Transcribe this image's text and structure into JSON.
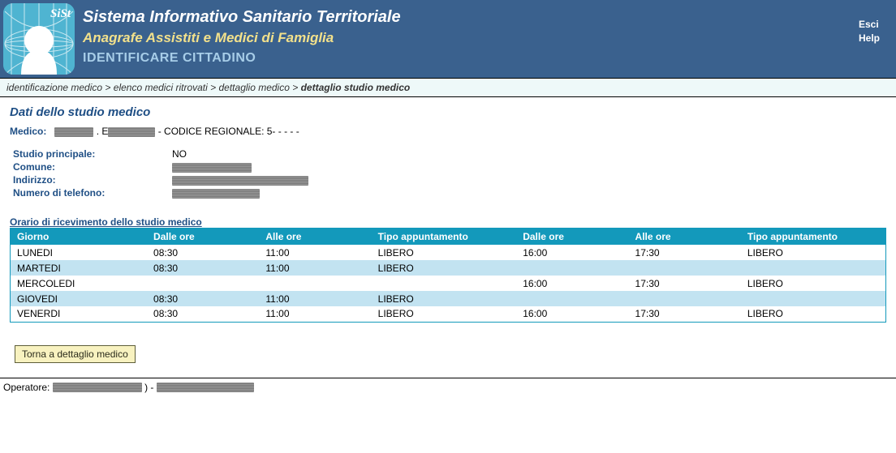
{
  "header": {
    "title1": "Sistema Informativo Sanitario Territoriale",
    "title2": "Anagrafe Assistiti e Medici di Famiglia",
    "subtitle": "IDENTIFICARE CITTADINO",
    "logo_label": "SiSt",
    "links": {
      "esci": "Esci",
      "help": "Help"
    },
    "colors": {
      "bg": "#3a618e",
      "title1": "#ffffff",
      "title2": "#f3e18b",
      "subtitle": "#a7cde8",
      "logo_bg": "#4fb4d1"
    }
  },
  "breadcrumb": {
    "items": [
      "identificazione medico",
      "elenco medici ritrovati",
      "dettaglio medico"
    ],
    "current": "dettaglio studio medico",
    "separator": " > "
  },
  "section_title": "Dati dello studio medico",
  "medico": {
    "label": "Medico:",
    "name_prefix_redacted_width": 48,
    "name_sep": ". E",
    "name_suffix_redacted_width": 58,
    "codice_label": " - CODICE REGIONALE: 5",
    "codice_suffix": "- - - - -"
  },
  "details": [
    {
      "label": "Studio principale:",
      "value": "NO",
      "redacted": false
    },
    {
      "label": "Comune:",
      "value": "",
      "redacted": true,
      "redacted_width": 98
    },
    {
      "label": "Indirizzo:",
      "value": "",
      "redacted": true,
      "redacted_width": 168
    },
    {
      "label": "Numero di telefono:",
      "value": "",
      "redacted": true,
      "redacted_width": 108
    }
  ],
  "schedule": {
    "title": "Orario di ricevimento dello studio medico",
    "header_bg": "#1399bb",
    "row_alt_bg": "#c2e3f1",
    "columns": [
      "Giorno",
      "Dalle ore",
      "Alle ore",
      "Tipo appuntamento",
      "Dalle ore",
      "Alle ore",
      "Tipo appuntamento"
    ],
    "rows": [
      {
        "day": "LUNEDI",
        "am_from": "08:30",
        "am_to": "11:00",
        "am_type": "LIBERO",
        "pm_from": "16:00",
        "pm_to": "17:30",
        "pm_type": "LIBERO"
      },
      {
        "day": "MARTEDI",
        "am_from": "08:30",
        "am_to": "11:00",
        "am_type": "LIBERO",
        "pm_from": "",
        "pm_to": "",
        "pm_type": ""
      },
      {
        "day": "MERCOLEDI",
        "am_from": "",
        "am_to": "",
        "am_type": "",
        "pm_from": "16:00",
        "pm_to": "17:30",
        "pm_type": "LIBERO"
      },
      {
        "day": "GIOVEDI",
        "am_from": "08:30",
        "am_to": "11:00",
        "am_type": "LIBERO",
        "pm_from": "",
        "pm_to": "",
        "pm_type": ""
      },
      {
        "day": "VENERDI",
        "am_from": "08:30",
        "am_to": "11:00",
        "am_type": "LIBERO",
        "pm_from": "16:00",
        "pm_to": "17:30",
        "pm_type": "LIBERO"
      }
    ]
  },
  "buttons": {
    "back": "Torna a dettaglio medico"
  },
  "footer": {
    "operatore_label": "Operatore:",
    "redacted1_width": 110,
    "sep": ") - ",
    "redacted2_width": 120
  }
}
